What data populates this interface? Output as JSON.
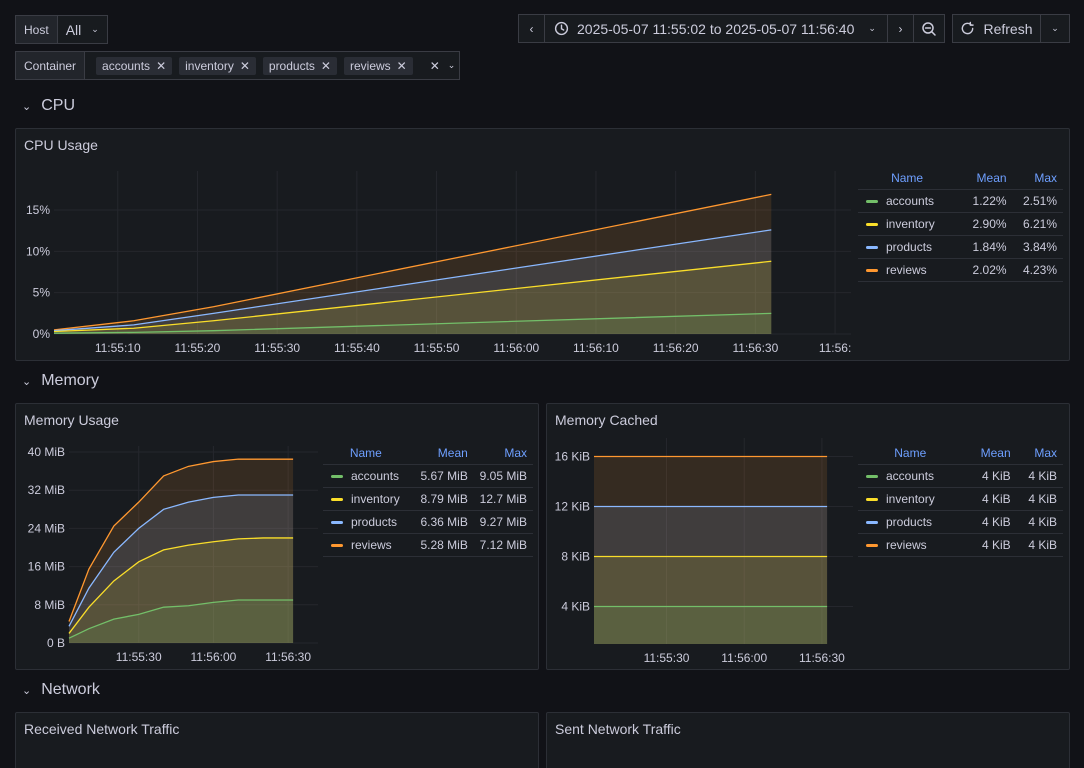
{
  "toolbar": {
    "host_label": "Host",
    "host_value": "All",
    "container_label": "Container",
    "containers": [
      "accounts",
      "inventory",
      "products",
      "reviews"
    ],
    "time_range": "2025-05-07 11:55:02 to 2025-05-07 11:56:40",
    "refresh_label": "Refresh"
  },
  "rows": {
    "cpu": "CPU",
    "memory": "Memory",
    "network": "Network"
  },
  "series_colors": {
    "accounts": "#73bf69",
    "inventory": "#fade2a",
    "products": "#8ab8ff",
    "reviews": "#ff9830"
  },
  "cpu_panel": {
    "title": "CPU Usage",
    "legend_headers": [
      "Name",
      "Mean",
      "Max"
    ],
    "legend": [
      {
        "name": "accounts",
        "mean": "1.22%",
        "max": "2.51%"
      },
      {
        "name": "inventory",
        "mean": "2.90%",
        "max": "6.21%"
      },
      {
        "name": "products",
        "mean": "1.84%",
        "max": "3.84%"
      },
      {
        "name": "reviews",
        "mean": "2.02%",
        "max": "4.23%"
      }
    ],
    "chart_data": {
      "type": "area",
      "y_ticks": [
        "0%",
        "5%",
        "10%",
        "15%"
      ],
      "x_ticks": [
        "11:55:10",
        "11:55:20",
        "11:55:30",
        "11:55:40",
        "11:55:50",
        "11:56:00",
        "11:56:10",
        "11:56:20",
        "11:56:30",
        "11:56:"
      ],
      "ylim": [
        0,
        19
      ],
      "x": [
        "11:55:02",
        "11:55:12",
        "11:55:22",
        "11:56:32"
      ],
      "series": [
        {
          "name": "reviews",
          "values": [
            0.5,
            1.6,
            3.3,
            16.9
          ]
        },
        {
          "name": "products",
          "values": [
            0.4,
            1.1,
            2.5,
            12.6
          ]
        },
        {
          "name": "inventory",
          "values": [
            0.3,
            0.7,
            1.6,
            8.8
          ]
        },
        {
          "name": "accounts",
          "values": [
            0.1,
            0.2,
            0.4,
            2.5
          ]
        }
      ]
    }
  },
  "memory_panel": {
    "title": "Memory Usage",
    "legend_headers": [
      "Name",
      "Mean",
      "Max"
    ],
    "legend": [
      {
        "name": "accounts",
        "mean": "5.67 MiB",
        "max": "9.05 MiB"
      },
      {
        "name": "inventory",
        "mean": "8.79 MiB",
        "max": "12.7 MiB"
      },
      {
        "name": "products",
        "mean": "6.36 MiB",
        "max": "9.27 MiB"
      },
      {
        "name": "reviews",
        "mean": "5.28 MiB",
        "max": "7.12 MiB"
      }
    ],
    "chart_data": {
      "type": "area",
      "y_ticks": [
        "0 B",
        "8 MiB",
        "16 MiB",
        "24 MiB",
        "32 MiB",
        "40 MiB"
      ],
      "x_ticks": [
        "11:55:30",
        "11:56:00",
        "11:56:30"
      ],
      "ylim": [
        0,
        40
      ],
      "x": [
        "11:55:02",
        "11:55:10",
        "11:55:20",
        "11:55:30",
        "11:55:40",
        "11:55:50",
        "11:56:00",
        "11:56:10",
        "11:56:20",
        "11:56:32"
      ],
      "series": [
        {
          "name": "reviews",
          "values": [
            4.5,
            15.5,
            24.5,
            29.5,
            35,
            37,
            38,
            38.5,
            38.5,
            38.5
          ]
        },
        {
          "name": "products",
          "values": [
            3.5,
            11.5,
            19,
            24,
            28,
            29.5,
            30.5,
            31,
            31,
            31
          ]
        },
        {
          "name": "inventory",
          "values": [
            2,
            7.5,
            13,
            17,
            19.5,
            20.5,
            21.2,
            21.8,
            22,
            22
          ]
        },
        {
          "name": "accounts",
          "values": [
            1,
            3,
            5,
            6,
            7.5,
            7.8,
            8.5,
            9,
            9,
            9
          ]
        }
      ]
    }
  },
  "cached_panel": {
    "title": "Memory Cached",
    "legend_headers": [
      "Name",
      "Mean",
      "Max"
    ],
    "legend": [
      {
        "name": "accounts",
        "mean": "4 KiB",
        "max": "4 KiB"
      },
      {
        "name": "inventory",
        "mean": "4 KiB",
        "max": "4 KiB"
      },
      {
        "name": "products",
        "mean": "4 KiB",
        "max": "4 KiB"
      },
      {
        "name": "reviews",
        "mean": "4 KiB",
        "max": "4 KiB"
      }
    ],
    "chart_data": {
      "type": "area",
      "y_ticks": [
        "4 KiB",
        "8 KiB",
        "12 KiB",
        "16 KiB"
      ],
      "x_ticks": [
        "11:55:30",
        "11:56:00",
        "11:56:30"
      ],
      "ylim": [
        1,
        17
      ],
      "x": [
        "11:55:02",
        "11:56:32"
      ],
      "series": [
        {
          "name": "reviews",
          "values": [
            16,
            16
          ]
        },
        {
          "name": "products",
          "values": [
            12,
            12
          ]
        },
        {
          "name": "inventory",
          "values": [
            8,
            8
          ]
        },
        {
          "name": "accounts",
          "values": [
            4,
            4
          ]
        }
      ]
    }
  },
  "network": {
    "received_title": "Received Network Traffic",
    "sent_title": "Sent Network Traffic"
  }
}
